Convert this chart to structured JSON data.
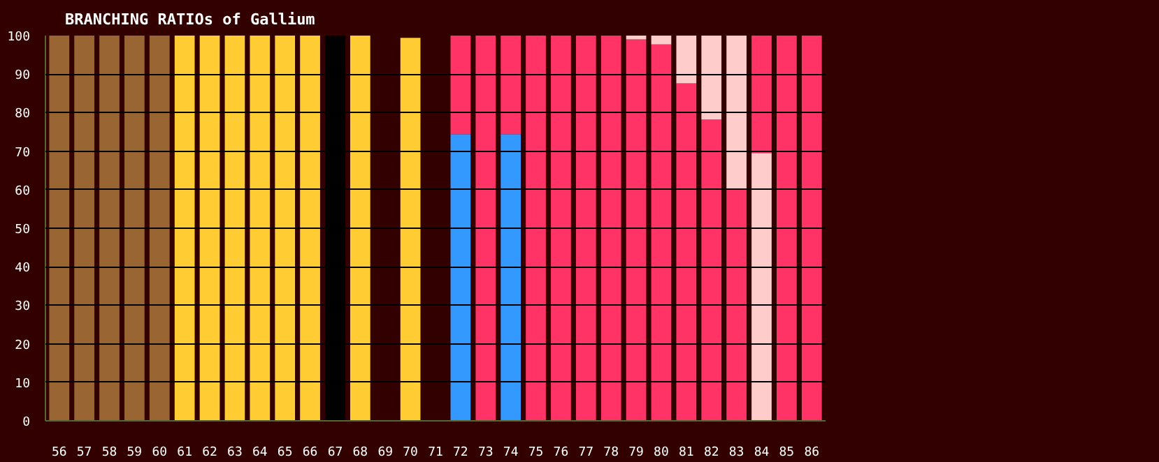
{
  "chart_data": {
    "type": "bar",
    "title": "BRANCHING RATIOs of Gallium",
    "categories": [
      "56",
      "57",
      "58",
      "59",
      "60",
      "61",
      "62",
      "63",
      "64",
      "65",
      "66",
      "67",
      "68",
      "69",
      "70",
      "71",
      "72",
      "73",
      "74",
      "75",
      "76",
      "77",
      "78",
      "79",
      "80",
      "81",
      "82",
      "83",
      "84",
      "85",
      "86"
    ],
    "stacked": true,
    "ylim": [
      0,
      100
    ],
    "yticks": [
      0,
      10,
      20,
      30,
      40,
      50,
      60,
      70,
      80,
      90,
      100
    ],
    "grid": "y",
    "series": [
      {
        "values": [
          100,
          100,
          100,
          100,
          100,
          100,
          100,
          100,
          100,
          100,
          100,
          100,
          100,
          null,
          99.4,
          null,
          74.4,
          100,
          74.4,
          100,
          100,
          100,
          100,
          99,
          97.7,
          87.6,
          78.2,
          60.2,
          69.5,
          100,
          100
        ],
        "colors": [
          "#996633",
          "#996633",
          "#996633",
          "#996633",
          "#996633",
          "#ffcc33",
          "#ffcc33",
          "#ffcc33",
          "#ffcc33",
          "#ffcc33",
          "#ffcc33",
          "#000000",
          "#ffcc33",
          null,
          "#ffcc33",
          null,
          "#3399ff",
          "#ff3366",
          "#3399ff",
          "#ff3366",
          "#ff3366",
          "#ff3366",
          "#ff3366",
          "#ff3366",
          "#ff3366",
          "#ff3366",
          "#ff3366",
          "#ff3366",
          "#ffcccc",
          "#ff3366",
          "#ff3366"
        ]
      },
      {
        "values": [
          null,
          null,
          null,
          null,
          null,
          null,
          null,
          null,
          null,
          null,
          null,
          null,
          null,
          null,
          null,
          null,
          25.6,
          null,
          25.6,
          null,
          null,
          null,
          null,
          1,
          2.3,
          12.4,
          21.8,
          39.8,
          30.5,
          null,
          null
        ],
        "colors": [
          null,
          null,
          null,
          null,
          null,
          null,
          null,
          null,
          null,
          null,
          null,
          null,
          null,
          null,
          null,
          null,
          "#ff3366",
          null,
          "#ff3366",
          null,
          null,
          null,
          null,
          "#ffcccc",
          "#ffcccc",
          "#ffcccc",
          "#ffcccc",
          "#ffcccc",
          "#ff3366",
          null,
          null
        ]
      }
    ]
  }
}
